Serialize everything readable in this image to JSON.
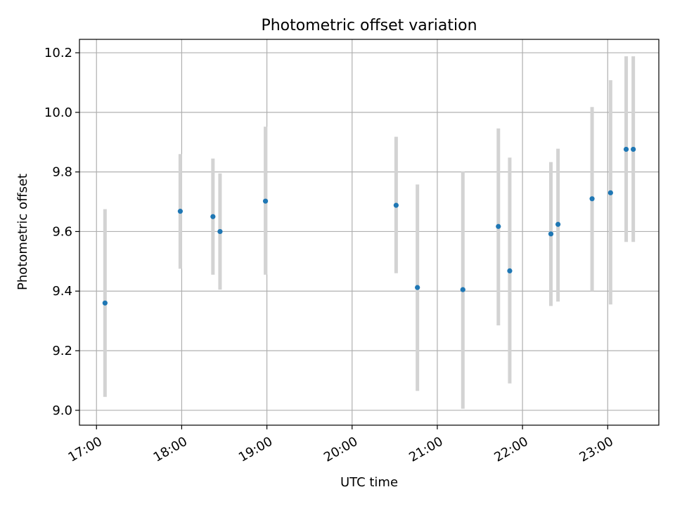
{
  "chart_data": {
    "type": "scatter",
    "title": "Photometric offset variation",
    "xlabel": "UTC time",
    "ylabel": "Photometric offset",
    "x_unit": "UTC hh:mm",
    "xlim": [
      "16:48",
      "23:36"
    ],
    "ylim": [
      8.95,
      10.245
    ],
    "x_ticks": [
      "17:00",
      "18:00",
      "19:00",
      "20:00",
      "21:00",
      "22:00",
      "23:00"
    ],
    "y_ticks": [
      "9.0",
      "9.2",
      "9.4",
      "9.6",
      "9.8",
      "10.0",
      "10.2"
    ],
    "grid": true,
    "legend": "none",
    "marker_color": "#1f77b4",
    "errorbar_color": "#d3d3d3",
    "points": [
      {
        "time": "17:06",
        "value": 9.36,
        "err_low": 9.045,
        "err_high": 9.675
      },
      {
        "time": "17:59",
        "value": 9.668,
        "err_low": 9.475,
        "err_high": 9.86
      },
      {
        "time": "18:22",
        "value": 9.65,
        "err_low": 9.455,
        "err_high": 9.845
      },
      {
        "time": "18:27",
        "value": 9.6,
        "err_low": 9.405,
        "err_high": 9.795
      },
      {
        "time": "18:59",
        "value": 9.702,
        "err_low": 9.455,
        "err_high": 9.952
      },
      {
        "time": "20:31",
        "value": 9.688,
        "err_low": 9.46,
        "err_high": 9.918
      },
      {
        "time": "20:46",
        "value": 9.412,
        "err_low": 9.065,
        "err_high": 9.758
      },
      {
        "time": "21:18",
        "value": 9.405,
        "err_low": 9.005,
        "err_high": 9.802
      },
      {
        "time": "21:43",
        "value": 9.617,
        "err_low": 9.285,
        "err_high": 9.946
      },
      {
        "time": "21:51",
        "value": 9.468,
        "err_low": 9.09,
        "err_high": 9.848
      },
      {
        "time": "22:20",
        "value": 9.592,
        "err_low": 9.35,
        "err_high": 9.833
      },
      {
        "time": "22:25",
        "value": 9.624,
        "err_low": 9.365,
        "err_high": 9.878
      },
      {
        "time": "22:49",
        "value": 9.71,
        "err_low": 9.4,
        "err_high": 10.018
      },
      {
        "time": "23:02",
        "value": 9.73,
        "err_low": 9.355,
        "err_high": 10.108
      },
      {
        "time": "23:13",
        "value": 9.876,
        "err_low": 9.565,
        "err_high": 10.188
      },
      {
        "time": "23:18",
        "value": 9.876,
        "err_low": 9.565,
        "err_high": 10.188
      }
    ]
  }
}
